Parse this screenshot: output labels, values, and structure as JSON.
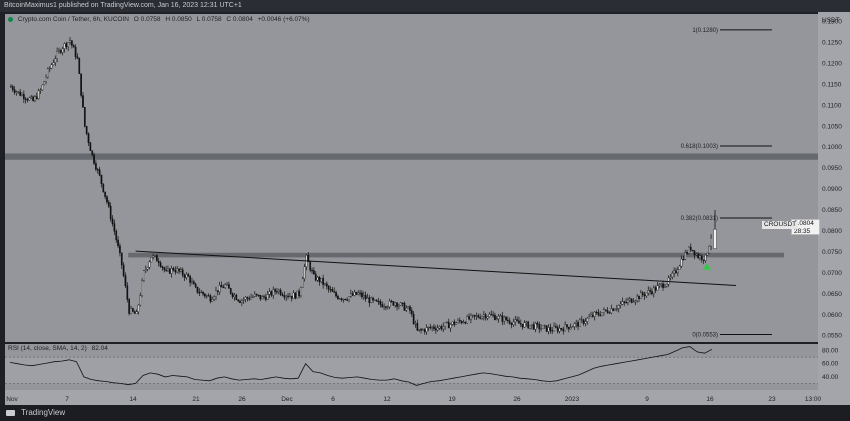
{
  "header": {
    "published_text": "BitcoinMaximus1 published on TradingView.com, Jan 16, 2023 12:31 UTC+1"
  },
  "legend": {
    "symbol": "Crypto.com Coin / Tether, 6h, KUCOIN",
    "open": "O 0.0758",
    "high": "H 0.0850",
    "low": "L 0.0758",
    "close": "C 0.0804",
    "change": "+0.0046 (+6.07%)"
  },
  "rsi_legend": {
    "label": "RSI (14, close, SMA, 14, 2)",
    "value": "82.04"
  },
  "price_tag": {
    "ticker": "CROUSDT",
    "price": "0.0804",
    "countdown": "28:35"
  },
  "footer": {
    "brand": "TradingView"
  },
  "colors": {
    "panel_bg": "#94969b",
    "candle": "#111111",
    "zone": "#5e6166",
    "rsi_band": "#a5a7ab",
    "arrow": "#2ecc40"
  },
  "chart_data": {
    "type": "candlestick",
    "title": "Crypto.com Coin / Tether, 6h, KUCOIN",
    "y_axis_unit": "USDT",
    "ylim": [
      0.0535,
      0.1318
    ],
    "y_ticks": [
      "0.1300",
      "0.1250",
      "0.1200",
      "0.1150",
      "0.1100",
      "0.1050",
      "0.1000",
      "0.0950",
      "0.0900",
      "0.0850",
      "0.0800",
      "0.0750",
      "0.0700",
      "0.0650",
      "0.0600",
      "0.0550"
    ],
    "x_ticks": [
      "Nov",
      "7",
      "14",
      "21",
      "26",
      "Dec",
      "6",
      "12",
      "19",
      "26",
      "2023",
      "9",
      "16",
      "23",
      "13:00"
    ],
    "close_path": [
      [
        0,
        0.1145
      ],
      [
        1,
        0.113
      ],
      [
        2,
        0.112
      ],
      [
        3,
        0.111
      ],
      [
        4,
        0.1135
      ],
      [
        5,
        0.118
      ],
      [
        6,
        0.1215
      ],
      [
        7,
        0.124
      ],
      [
        8,
        0.1255
      ],
      [
        9,
        0.121
      ],
      [
        10,
        0.105
      ],
      [
        11,
        0.098
      ],
      [
        12,
        0.093
      ],
      [
        13,
        0.087
      ],
      [
        14,
        0.08
      ],
      [
        15,
        0.072
      ],
      [
        16,
        0.061
      ],
      [
        17,
        0.06
      ],
      [
        18,
        0.07
      ],
      [
        19,
        0.074
      ],
      [
        20,
        0.073
      ],
      [
        21,
        0.07
      ],
      [
        22,
        0.071
      ],
      [
        23,
        0.07
      ],
      [
        24,
        0.069
      ],
      [
        25,
        0.066
      ],
      [
        26,
        0.065
      ],
      [
        27,
        0.064
      ],
      [
        28,
        0.066
      ],
      [
        29,
        0.067
      ],
      [
        30,
        0.065
      ],
      [
        31,
        0.0635
      ],
      [
        32,
        0.064
      ],
      [
        33,
        0.0645
      ],
      [
        34,
        0.064
      ],
      [
        35,
        0.0648
      ],
      [
        36,
        0.066
      ],
      [
        37,
        0.065
      ],
      [
        38,
        0.0645
      ],
      [
        39,
        0.065
      ],
      [
        40,
        0.0735
      ],
      [
        41,
        0.069
      ],
      [
        42,
        0.068
      ],
      [
        43,
        0.066
      ],
      [
        44,
        0.0645
      ],
      [
        45,
        0.064
      ],
      [
        46,
        0.0645
      ],
      [
        47,
        0.065
      ],
      [
        48,
        0.064
      ],
      [
        49,
        0.063
      ],
      [
        50,
        0.0625
      ],
      [
        51,
        0.0625
      ],
      [
        52,
        0.063
      ],
      [
        53,
        0.062
      ],
      [
        54,
        0.061
      ],
      [
        55,
        0.056
      ],
      [
        56,
        0.0565
      ],
      [
        57,
        0.057
      ],
      [
        58,
        0.057
      ],
      [
        59,
        0.0575
      ],
      [
        60,
        0.058
      ],
      [
        61,
        0.0585
      ],
      [
        62,
        0.059
      ],
      [
        63,
        0.0595
      ],
      [
        64,
        0.06
      ],
      [
        65,
        0.0598
      ],
      [
        66,
        0.0593
      ],
      [
        67,
        0.0588
      ],
      [
        68,
        0.0583
      ],
      [
        69,
        0.0578
      ],
      [
        70,
        0.0575
      ],
      [
        71,
        0.0572
      ],
      [
        72,
        0.0568
      ],
      [
        73,
        0.0565
      ],
      [
        74,
        0.0566
      ],
      [
        75,
        0.057
      ],
      [
        76,
        0.0575
      ],
      [
        77,
        0.058
      ],
      [
        78,
        0.059
      ],
      [
        79,
        0.06
      ],
      [
        80,
        0.0605
      ],
      [
        81,
        0.0612
      ],
      [
        82,
        0.062
      ],
      [
        83,
        0.0628
      ],
      [
        84,
        0.0636
      ],
      [
        85,
        0.0644
      ],
      [
        86,
        0.0652
      ],
      [
        87,
        0.066
      ],
      [
        88,
        0.067
      ],
      [
        89,
        0.068
      ],
      [
        90,
        0.0705
      ],
      [
        91,
        0.074
      ],
      [
        92,
        0.076
      ],
      [
        93,
        0.074
      ],
      [
        94,
        0.0735
      ],
      [
        95,
        0.0804
      ]
    ],
    "annotations": {
      "fib_levels": [
        {
          "label": "1(0.1280)",
          "value": 0.128
        },
        {
          "label": "0.618(0.1003)",
          "value": 0.1003
        },
        {
          "label": "0.382(0.0831)",
          "value": 0.0831
        },
        {
          "label": "0(0.0553)",
          "value": 0.0553
        }
      ],
      "resistance_zones": [
        {
          "from": 0.097,
          "to": 0.0985
        },
        {
          "from": 0.0737,
          "to": 0.0748
        }
      ],
      "trendline": {
        "start": [
          17,
          0.0752
        ],
        "end": [
          100,
          0.067
        ]
      },
      "arrow": {
        "index": 95,
        "value": 0.0715
      }
    },
    "rsi": {
      "levels": [
        80,
        60,
        40
      ],
      "upper_band": 70,
      "lower_band": 30,
      "ylim": [
        20,
        90
      ],
      "values": [
        62,
        60,
        58,
        57,
        59,
        61,
        63,
        64,
        66,
        63,
        40,
        36,
        34,
        33,
        31,
        30,
        28,
        30,
        42,
        46,
        44,
        40,
        42,
        41,
        40,
        36,
        35,
        34,
        38,
        40,
        37,
        35,
        36,
        37,
        36,
        38,
        40,
        38,
        37,
        38,
        60,
        48,
        46,
        42,
        39,
        38,
        39,
        40,
        38,
        36,
        35,
        35,
        37,
        34,
        32,
        27,
        30,
        33,
        34,
        36,
        38,
        40,
        42,
        44,
        46,
        45,
        43,
        41,
        40,
        38,
        37,
        36,
        34,
        33,
        34,
        37,
        40,
        43,
        48,
        53,
        56,
        58,
        60,
        62,
        64,
        66,
        68,
        70,
        72,
        74,
        79,
        84,
        86,
        78,
        76,
        82
      ]
    }
  }
}
